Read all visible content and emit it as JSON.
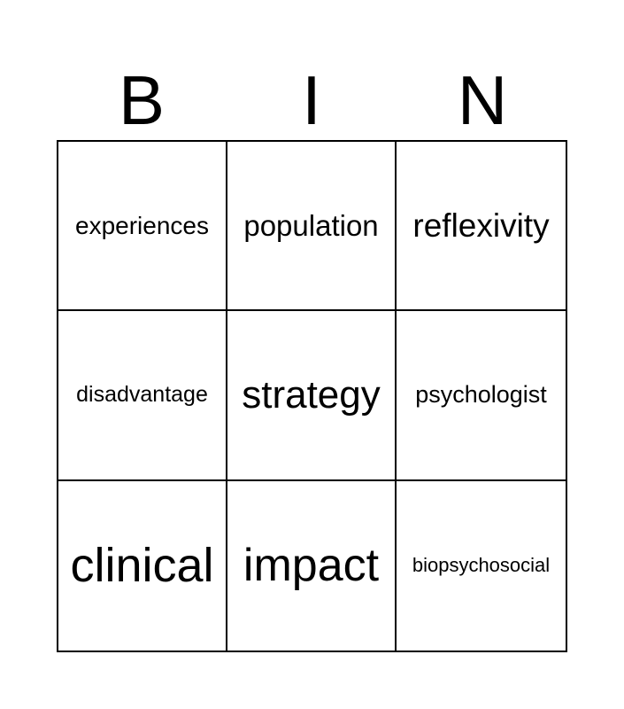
{
  "header": [
    "B",
    "I",
    "N"
  ],
  "cells": [
    {
      "word": "experiences",
      "size": 28
    },
    {
      "word": "population",
      "size": 33
    },
    {
      "word": "reflexivity",
      "size": 37
    },
    {
      "word": "disadvantage",
      "size": 25
    },
    {
      "word": "strategy",
      "size": 44
    },
    {
      "word": "psychologist",
      "size": 27
    },
    {
      "word": "clinical",
      "size": 54
    },
    {
      "word": "impact",
      "size": 52
    },
    {
      "word": "biopsychosocial",
      "size": 22
    }
  ]
}
